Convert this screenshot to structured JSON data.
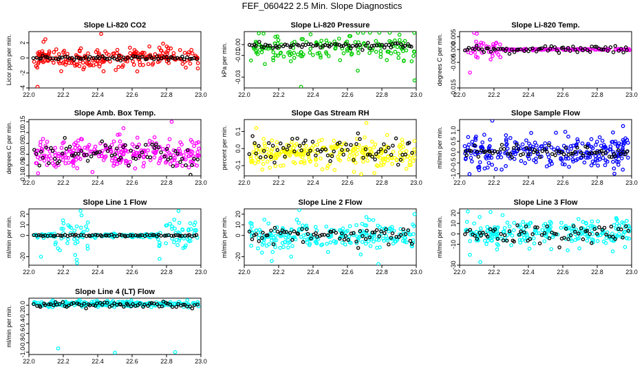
{
  "page": {
    "title": "FEF_060422  2.5 Min. Slope Diagnostics"
  },
  "colors": {
    "dark": "#000000",
    "red": "#ff0000",
    "green": "#00cc00",
    "magenta": "#ff00ff",
    "yellow": "#ffff00",
    "blue": "#0000ff",
    "cyan": "#00ffff"
  },
  "chart_data": [
    {
      "type": "scatter",
      "title": "Slope Li-820 CO2",
      "ylabel": "Licor ppm per min.",
      "xlabel": "",
      "xlim": [
        22.0,
        23.0
      ],
      "ylim": [
        -4,
        3.5
      ],
      "xticks": [
        "22.0",
        "22.2",
        "22.4",
        "22.6",
        "22.8",
        "23.0"
      ],
      "yticks": [
        "-4",
        "-2",
        "0",
        "2"
      ],
      "color": "#ff0000",
      "seed": 11,
      "n": 230,
      "sd": 0.7,
      "center": 0.0,
      "outliers": [
        [
          22.05,
          -3.9
        ],
        [
          22.42,
          3.2
        ],
        [
          22.63,
          -1.8
        ],
        [
          22.78,
          1.9
        ]
      ],
      "dark_sd": 0.15,
      "dark_n": 70
    },
    {
      "type": "scatter",
      "title": "Slope Li-820 Pressure",
      "ylabel": "kPa per min.",
      "xlabel": "",
      "xlim": [
        22.0,
        23.0
      ],
      "ylim": [
        -0.04,
        0.012
      ],
      "xticks": [
        "22.0",
        "22.2",
        "22.4",
        "22.6",
        "22.8",
        "23.0"
      ],
      "yticks": [
        "-0.03",
        "-0.01",
        "0.00"
      ],
      "color": "#00cc00",
      "seed": 23,
      "n": 160,
      "sd": 0.006,
      "center": -0.002,
      "outliers": [
        [
          22.33,
          -0.039
        ],
        [
          22.99,
          -0.033
        ],
        [
          22.66,
          -0.024
        ],
        [
          22.12,
          -0.018
        ]
      ],
      "dark_sd": 0.0012,
      "dark_n": 70
    },
    {
      "type": "scatter",
      "title": "Slope Li-820 Temp.",
      "ylabel": "degrees C per min.",
      "xlabel": "",
      "xlim": [
        22.0,
        23.0
      ],
      "ylim": [
        -0.015,
        0.007
      ],
      "xticks": [
        "22.0",
        "22.2",
        "22.4",
        "22.6",
        "22.8",
        "23.0"
      ],
      "yticks": [
        "-0.015",
        "-0.005",
        "0.000",
        "0.005"
      ],
      "color": "#ff00ff",
      "seed": 37,
      "n": 200,
      "sd": 0.0015,
      "center": 0.0,
      "outliers": [
        [
          22.1,
          0.0062
        ],
        [
          22.06,
          -0.009
        ]
      ],
      "dark_sd": 0.0008,
      "dark_n": 70,
      "note": "scatter concentrated between 22.0 and 22.25; near zero afterwards"
    },
    {
      "type": "scatter",
      "title": "Slope Amb. Box Temp.",
      "ylabel": "degrees C per min.",
      "xlabel": "",
      "xlim": [
        22.0,
        23.0
      ],
      "ylim": [
        -0.1,
        0.16
      ],
      "xticks": [
        "22.0",
        "22.2",
        "22.4",
        "22.6",
        "22.8",
        "23.0"
      ],
      "yticks": [
        "-0.10",
        "-0.05",
        "0.00",
        "0.05",
        "0.10",
        "0.15"
      ],
      "color": "#ff00ff",
      "seed": 41,
      "n": 260,
      "sd": 0.035,
      "center": 0.0,
      "outliers": [
        [
          22.83,
          0.15
        ],
        [
          22.55,
          0.12
        ]
      ],
      "dark_sd": 0.03,
      "dark_n": 70
    },
    {
      "type": "scatter",
      "title": "Slope Gas Stream RH",
      "ylabel": "percent per min.",
      "xlabel": "",
      "xlim": [
        22.0,
        23.0
      ],
      "ylim": [
        -0.16,
        0.17
      ],
      "xticks": [
        "22.0",
        "22.2",
        "22.4",
        "22.6",
        "22.8",
        "23.0"
      ],
      "yticks": [
        "-0.1",
        "0.0",
        "0.1"
      ],
      "color": "#ffff00",
      "seed": 53,
      "n": 260,
      "sd": 0.04,
      "center": -0.03,
      "outliers": [
        [
          22.07,
          0.12
        ],
        [
          22.71,
          0.15
        ],
        [
          22.68,
          -0.15
        ]
      ],
      "dark_sd": 0.04,
      "dark_n": 70
    },
    {
      "type": "scatter",
      "title": "Slope Sample Flow",
      "ylabel": "ml/min per min.",
      "xlabel": "",
      "xlim": [
        22.0,
        23.0
      ],
      "ylim": [
        -1.1,
        1.5
      ],
      "xticks": [
        "22.0",
        "22.2",
        "22.4",
        "22.6",
        "22.8",
        "23.0"
      ],
      "yticks": [
        "-1.0",
        "-0.5",
        "0.0",
        "0.5",
        "1.0"
      ],
      "color": "#0000ff",
      "seed": 67,
      "n": 260,
      "sd": 0.35,
      "center": 0.0,
      "outliers": [
        [
          22.19,
          1.45
        ],
        [
          22.95,
          1.2
        ],
        [
          22.9,
          -1.0
        ]
      ],
      "dark_sd": 0.12,
      "dark_n": 70
    },
    {
      "type": "scatter",
      "title": "Slope Line 1 Flow",
      "ylabel": "ml/min per min.",
      "xlabel": "",
      "xlim": [
        22.0,
        23.0
      ],
      "ylim": [
        -28,
        25
      ],
      "xticks": [
        "22.0",
        "22.2",
        "22.4",
        "22.6",
        "22.8",
        "23.0"
      ],
      "yticks": [
        "-20",
        "0",
        "10",
        "20"
      ],
      "color": "#00ffff",
      "seed": 71,
      "n": 200,
      "sd": 6,
      "center": 0.0,
      "outliers": [
        [
          22.28,
          -26
        ],
        [
          22.3,
          23
        ],
        [
          22.87,
          23
        ],
        [
          22.76,
          -22
        ],
        [
          22.07,
          -20
        ]
      ],
      "dark_sd": 0.4,
      "dark_n": 70,
      "note": "heavy scatter near 22.2-22.3 and 22.8-23.0, tight band elsewhere"
    },
    {
      "type": "scatter",
      "title": "Slope Line 2 Flow",
      "ylabel": "ml/min per min.",
      "xlabel": "",
      "xlim": [
        22.0,
        23.0
      ],
      "ylim": [
        -28,
        25
      ],
      "xticks": [
        "22.0",
        "22.2",
        "22.4",
        "22.6",
        "22.8",
        "23.0"
      ],
      "yticks": [
        "-20",
        "0",
        "10",
        "20"
      ],
      "color": "#00ffff",
      "seed": 83,
      "n": 230,
      "sd": 6,
      "center": 0.0,
      "outliers": [
        [
          22.32,
          24
        ],
        [
          22.78,
          -27
        ],
        [
          22.99,
          20
        ],
        [
          22.16,
          -24
        ]
      ],
      "dark_sd": 4,
      "dark_n": 70
    },
    {
      "type": "scatter",
      "title": "Slope Line 3 Flow",
      "ylabel": "ml/min per min.",
      "xlabel": "",
      "xlim": [
        22.0,
        23.0
      ],
      "ylim": [
        -30,
        24
      ],
      "xticks": [
        "22.0",
        "22.2",
        "22.4",
        "22.6",
        "22.8",
        "23.0"
      ],
      "yticks": [
        "-30",
        "-10",
        "0",
        "10",
        "20"
      ],
      "color": "#00ffff",
      "seed": 97,
      "n": 240,
      "sd": 7,
      "center": 0.0,
      "outliers": [
        [
          22.12,
          -27
        ],
        [
          22.18,
          21
        ],
        [
          22.25,
          18
        ],
        [
          22.06,
          -20
        ]
      ],
      "dark_sd": 5,
      "dark_n": 70
    },
    {
      "type": "scatter",
      "title": "Slope Line 4 (LT) Flow",
      "ylabel": "ml/min per min.",
      "xlabel": "",
      "xlim": [
        22.0,
        23.0
      ],
      "ylim": [
        -1.05,
        0.15
      ],
      "xticks": [
        "22.0",
        "22.2",
        "22.4",
        "22.6",
        "22.8",
        "23.0"
      ],
      "yticks": [
        "-1.0",
        "-0.8",
        "-0.6",
        "-0.4",
        "-0.2",
        "0.0"
      ],
      "color": "#00ffff",
      "seed": 101,
      "n": 240,
      "sd": 0.03,
      "center": 0.03,
      "outliers": [
        [
          22.17,
          -0.92
        ],
        [
          22.5,
          -1.01
        ],
        [
          22.85,
          -1.0
        ]
      ],
      "dark_sd": 0.03,
      "dark_n": 70
    }
  ]
}
